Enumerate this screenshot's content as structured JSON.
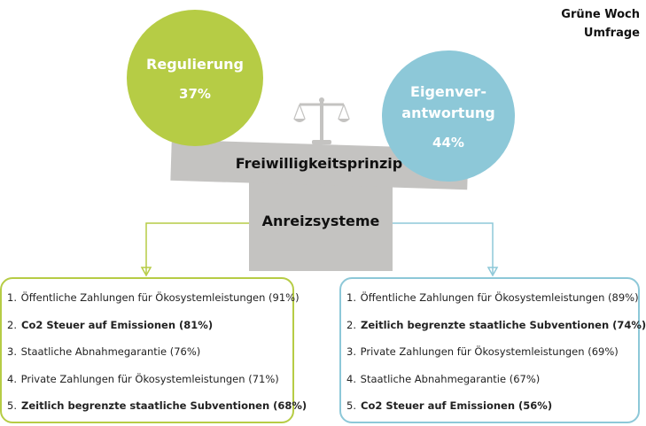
{
  "header": {
    "line1": "Grüne Woch",
    "line2": "Umfrage"
  },
  "colors": {
    "green": "#b6cc45",
    "blue": "#8dc8d8",
    "gray": "#c4c3c1"
  },
  "left_circle": {
    "label": "Regulierung",
    "value": "37%"
  },
  "right_circle": {
    "label": "Eigenver-\nantwortung",
    "value": "44%"
  },
  "beam_label": "Freiwilligkeitsprinzip",
  "pillar_label": "Anreizsysteme",
  "icons": {
    "scale": "balance-scale-icon"
  },
  "left_list": [
    {
      "num": "1.",
      "text": "Öffentliche Zahlungen für Ökosystemleistungen (91%)",
      "bold": false
    },
    {
      "num": "2.",
      "text": "Co2 Steuer auf Emissionen (81%)",
      "bold": true
    },
    {
      "num": "3.",
      "text": "Staatliche Abnahmegarantie (76%)",
      "bold": false
    },
    {
      "num": "4.",
      "text": "Private Zahlungen für Ökosystemleistungen (71%)",
      "bold": false
    },
    {
      "num": "5.",
      "text": "Zeitlich begrenzte staatliche Subventionen (68%)",
      "bold": true
    }
  ],
  "right_list": [
    {
      "num": "1.",
      "text": "Öffentliche Zahlungen für Ökosystemleistungen (89%)",
      "bold": false
    },
    {
      "num": "2.",
      "text": "Zeitlich begrenzte staatliche Subventionen (74%)",
      "bold": true
    },
    {
      "num": "3.",
      "text": "Private Zahlungen für Ökosystemleistungen (69%)",
      "bold": false
    },
    {
      "num": "4.",
      "text": "Staatliche Abnahmegarantie (67%)",
      "bold": false
    },
    {
      "num": "5.",
      "text": "Co2 Steuer auf Emissionen (56%)",
      "bold": true
    }
  ]
}
